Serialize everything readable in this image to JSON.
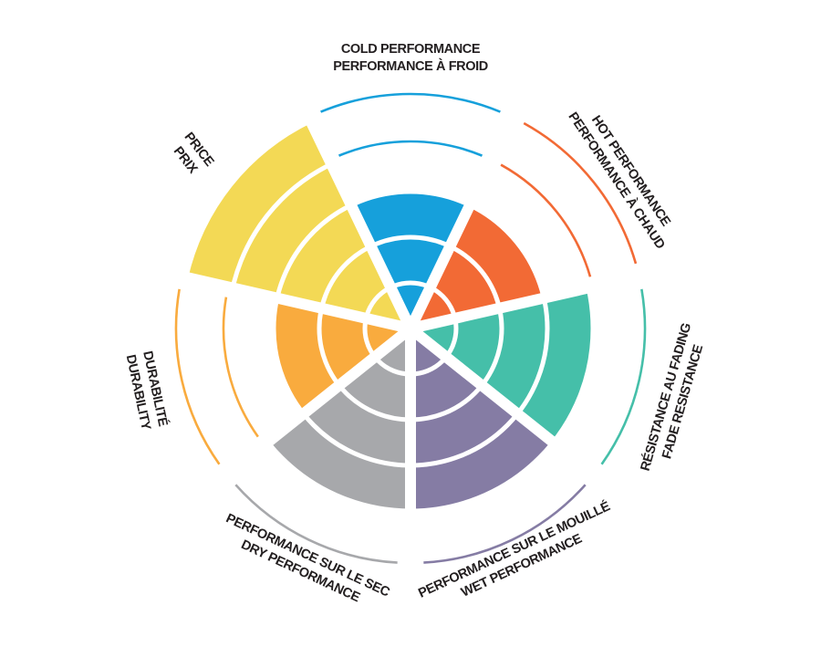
{
  "chart_data": {
    "type": "polar-area",
    "title": "",
    "categories": [
      {
        "lines": [
          "COLD PERFORMANCE",
          "PERFORMANCE À FROID"
        ],
        "value": 3,
        "color": "#16a0db"
      },
      {
        "lines": [
          "HOT PERFORMANCE",
          "PERFORMANCE À CHAUD"
        ],
        "value": 3,
        "color": "#f26a35"
      },
      {
        "lines": [
          "RÉSISTANCE AU FADING",
          "FADE RESISTANCE"
        ],
        "value": 4,
        "color": "#45bfa9"
      },
      {
        "lines": [
          "PERFORMANCE SUR LE MOUILLÉ",
          "WET PERFORMANCE"
        ],
        "value": 4,
        "color": "#857ca4"
      },
      {
        "lines": [
          "PERFORMANCE SUR LE SEC",
          "DRY PERFORMANCE"
        ],
        "value": 4,
        "color": "#a7a8ab"
      },
      {
        "lines": [
          "DURABILITÉ",
          "DURABILITY"
        ],
        "value": 3,
        "color": "#f9ab3e"
      },
      {
        "lines": [
          "PRICE",
          "PRIX"
        ],
        "value": 5,
        "color": "#f3d955"
      }
    ],
    "rlim": [
      0,
      5
    ],
    "grid": true,
    "legend": "none"
  }
}
